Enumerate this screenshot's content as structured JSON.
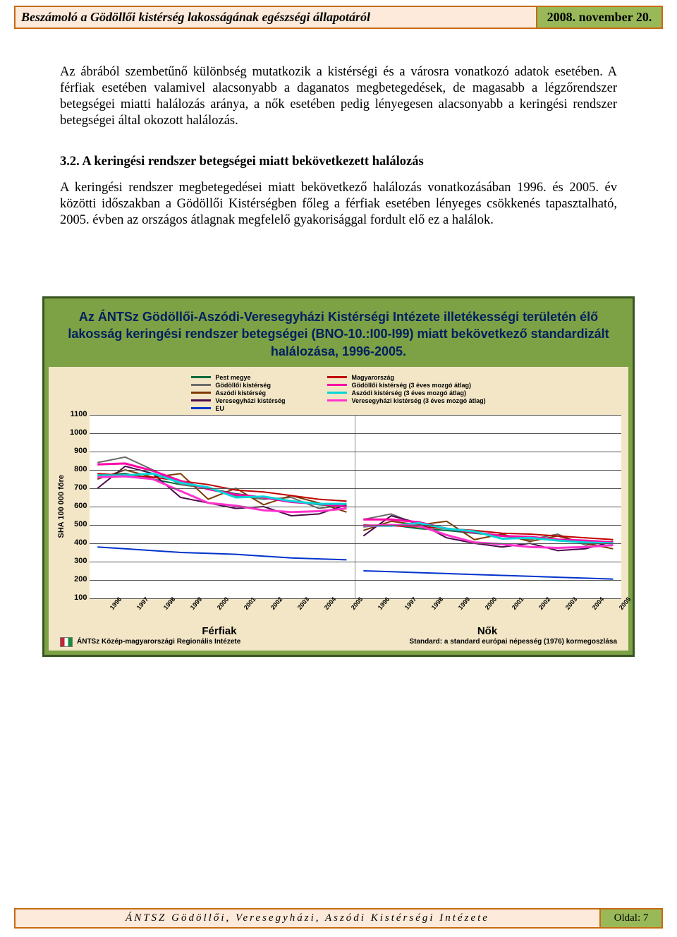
{
  "header": {
    "title": "Beszámoló a Gödöllői kistérség lakosságának egészségi állapotáról",
    "date": "2008. november 20."
  },
  "body": {
    "p1": "Az ábrából szembetűnő különbség mutatkozik a kistérségi és a városra vonatkozó adatok esetében. A férfiak esetében valamivel alacsonyabb a daganatos megbetegedések, de magasabb a légzőrendszer betegségei miatti halálozás aránya, a nők esetében pedig lényegesen alacsonyabb a keringési rendszer betegségei által okozott halálozás.",
    "heading": "3.2. A keringési rendszer betegségei miatt bekövetkezett halálozás",
    "p2": "A keringési rendszer megbetegedései miatt bekövetkező halálozás vonatkozásában 1996. és 2005. év közötti időszakban a Gödöllői Kistérségben főleg a férfiak esetében lényeges csökkenés tapasztalható, 2005. évben az országos átlagnak megfelelő gyakorisággal fordult elő ez a halálok."
  },
  "chart": {
    "title": "Az ÁNTSz Gödöllői-Aszódi-Veresegyházi Kistérségi Intézete illetékességi területén élő lakosság keringési rendszer betegségei (BNO-10.:I00-I99) miatt bekövetkező standardizált halálozása, 1996-2005.",
    "frame_bg": "#7da145",
    "frame_border": "#385521",
    "plot_bg": "#ffffff",
    "body_bg": "#f2e6c7",
    "title_color": "#002060",
    "ylabel": "SHA 100 000 főre",
    "ymin": 100,
    "ymax": 1100,
    "yticks": [
      1100,
      1000,
      900,
      800,
      700,
      600,
      500,
      400,
      300,
      200,
      100
    ],
    "years": [
      "1996",
      "1997",
      "1998",
      "1999",
      "2000",
      "2001",
      "2002",
      "2003",
      "2004",
      "2005"
    ],
    "panels": {
      "left": "Férfiak",
      "right": "Nők"
    },
    "legend_left": [
      {
        "label": "Pest megye",
        "color": "#006b3c"
      },
      {
        "label": "Gödöllői kistérség",
        "color": "#6a6a6a"
      },
      {
        "label": "Aszódi kistérség",
        "color": "#7c3a00"
      },
      {
        "label": "Veresegyházi kistérség",
        "color": "#4a0a4a"
      },
      {
        "label": "EU",
        "color": "#0033cc"
      }
    ],
    "legend_right": [
      {
        "label": "Magyarország",
        "color": "#c00000"
      },
      {
        "label": "Gödöllői kistérség (3 éves mozgó átlag)",
        "color": "#ff00a8"
      },
      {
        "label": "Aszódi kistérség (3 éves mozgó átlag)",
        "color": "#00d6d6"
      },
      {
        "label": "Veresegyházi kistérség (3 éves mozgó átlag)",
        "color": "#ff33cc"
      }
    ],
    "series_male": {
      "pest": {
        "color": "#006b3c",
        "line_width": 2,
        "values": [
          770,
          780,
          750,
          720,
          700,
          670,
          650,
          630,
          610,
          600
        ]
      },
      "godollo": {
        "color": "#6a6a6a",
        "line_width": 2,
        "values": [
          840,
          870,
          800,
          720,
          700,
          660,
          640,
          650,
          590,
          610
        ]
      },
      "aszod": {
        "color": "#7c3a00",
        "line_width": 2,
        "values": [
          750,
          800,
          760,
          780,
          640,
          700,
          610,
          660,
          620,
          570
        ]
      },
      "veresegyhaz": {
        "color": "#4a0a4a",
        "line_width": 2,
        "values": [
          700,
          820,
          780,
          650,
          620,
          590,
          600,
          550,
          560,
          610
        ]
      },
      "eu": {
        "color": "#0033cc",
        "line_width": 2,
        "values": [
          380,
          370,
          360,
          350,
          345,
          340,
          330,
          320,
          315,
          310
        ]
      },
      "hungary": {
        "color": "#c00000",
        "line_width": 2,
        "values": [
          780,
          770,
          760,
          740,
          720,
          690,
          680,
          660,
          640,
          630
        ]
      },
      "godollo_ma": {
        "color": "#ff00a8",
        "line_width": 3,
        "values": [
          830,
          835,
          795,
          740,
          695,
          665,
          650,
          625,
          615,
          600
        ]
      },
      "aszod_ma": {
        "color": "#00d6d6",
        "line_width": 3,
        "values": [
          770,
          770,
          780,
          730,
          705,
          650,
          655,
          630,
          615,
          615
        ]
      },
      "vereseg_ma": {
        "color": "#ff33cc",
        "line_width": 3,
        "values": [
          760,
          765,
          750,
          685,
          620,
          605,
          580,
          570,
          575,
          590
        ]
      }
    },
    "series_female": {
      "pest": {
        "color": "#006b3c",
        "line_width": 2,
        "values": [
          490,
          500,
          480,
          470,
          455,
          440,
          430,
          420,
          410,
          400
        ]
      },
      "godollo": {
        "color": "#6a6a6a",
        "line_width": 2,
        "values": [
          530,
          560,
          500,
          480,
          460,
          440,
          420,
          450,
          390,
          410
        ]
      },
      "aszod": {
        "color": "#7c3a00",
        "line_width": 2,
        "values": [
          470,
          520,
          500,
          520,
          420,
          450,
          410,
          440,
          400,
          370
        ]
      },
      "veresegyhaz": {
        "color": "#4a0a4a",
        "line_width": 2,
        "values": [
          440,
          550,
          510,
          430,
          400,
          380,
          400,
          360,
          370,
          410
        ]
      },
      "eu": {
        "color": "#0033cc",
        "line_width": 2,
        "values": [
          250,
          245,
          240,
          235,
          230,
          225,
          220,
          215,
          210,
          205
        ]
      },
      "hungary": {
        "color": "#c00000",
        "line_width": 2,
        "values": [
          500,
          495,
          490,
          480,
          470,
          455,
          450,
          440,
          430,
          420
        ]
      },
      "godollo_ma": {
        "color": "#ff00a8",
        "line_width": 3,
        "values": [
          530,
          530,
          515,
          480,
          460,
          440,
          435,
          420,
          415,
          405
        ]
      },
      "aszod_ma": {
        "color": "#00d6d6",
        "line_width": 3,
        "values": [
          495,
          495,
          510,
          480,
          465,
          425,
          430,
          415,
          405,
          400
        ]
      },
      "vereseg_ma": {
        "color": "#ff33cc",
        "line_width": 3,
        "values": [
          495,
          500,
          495,
          445,
          405,
          395,
          380,
          375,
          380,
          390
        ]
      }
    },
    "source": "ÁNTSz Közép-magyarországi Regionális Intézete",
    "standard": "Standard: a standard európai népesség (1976) kormegoszlása"
  },
  "footer": {
    "text": "ÁNTSZ Gödöllői, Veresegyházi, Aszódi Kistérségi Intézete",
    "page": "Oldal: 7"
  }
}
